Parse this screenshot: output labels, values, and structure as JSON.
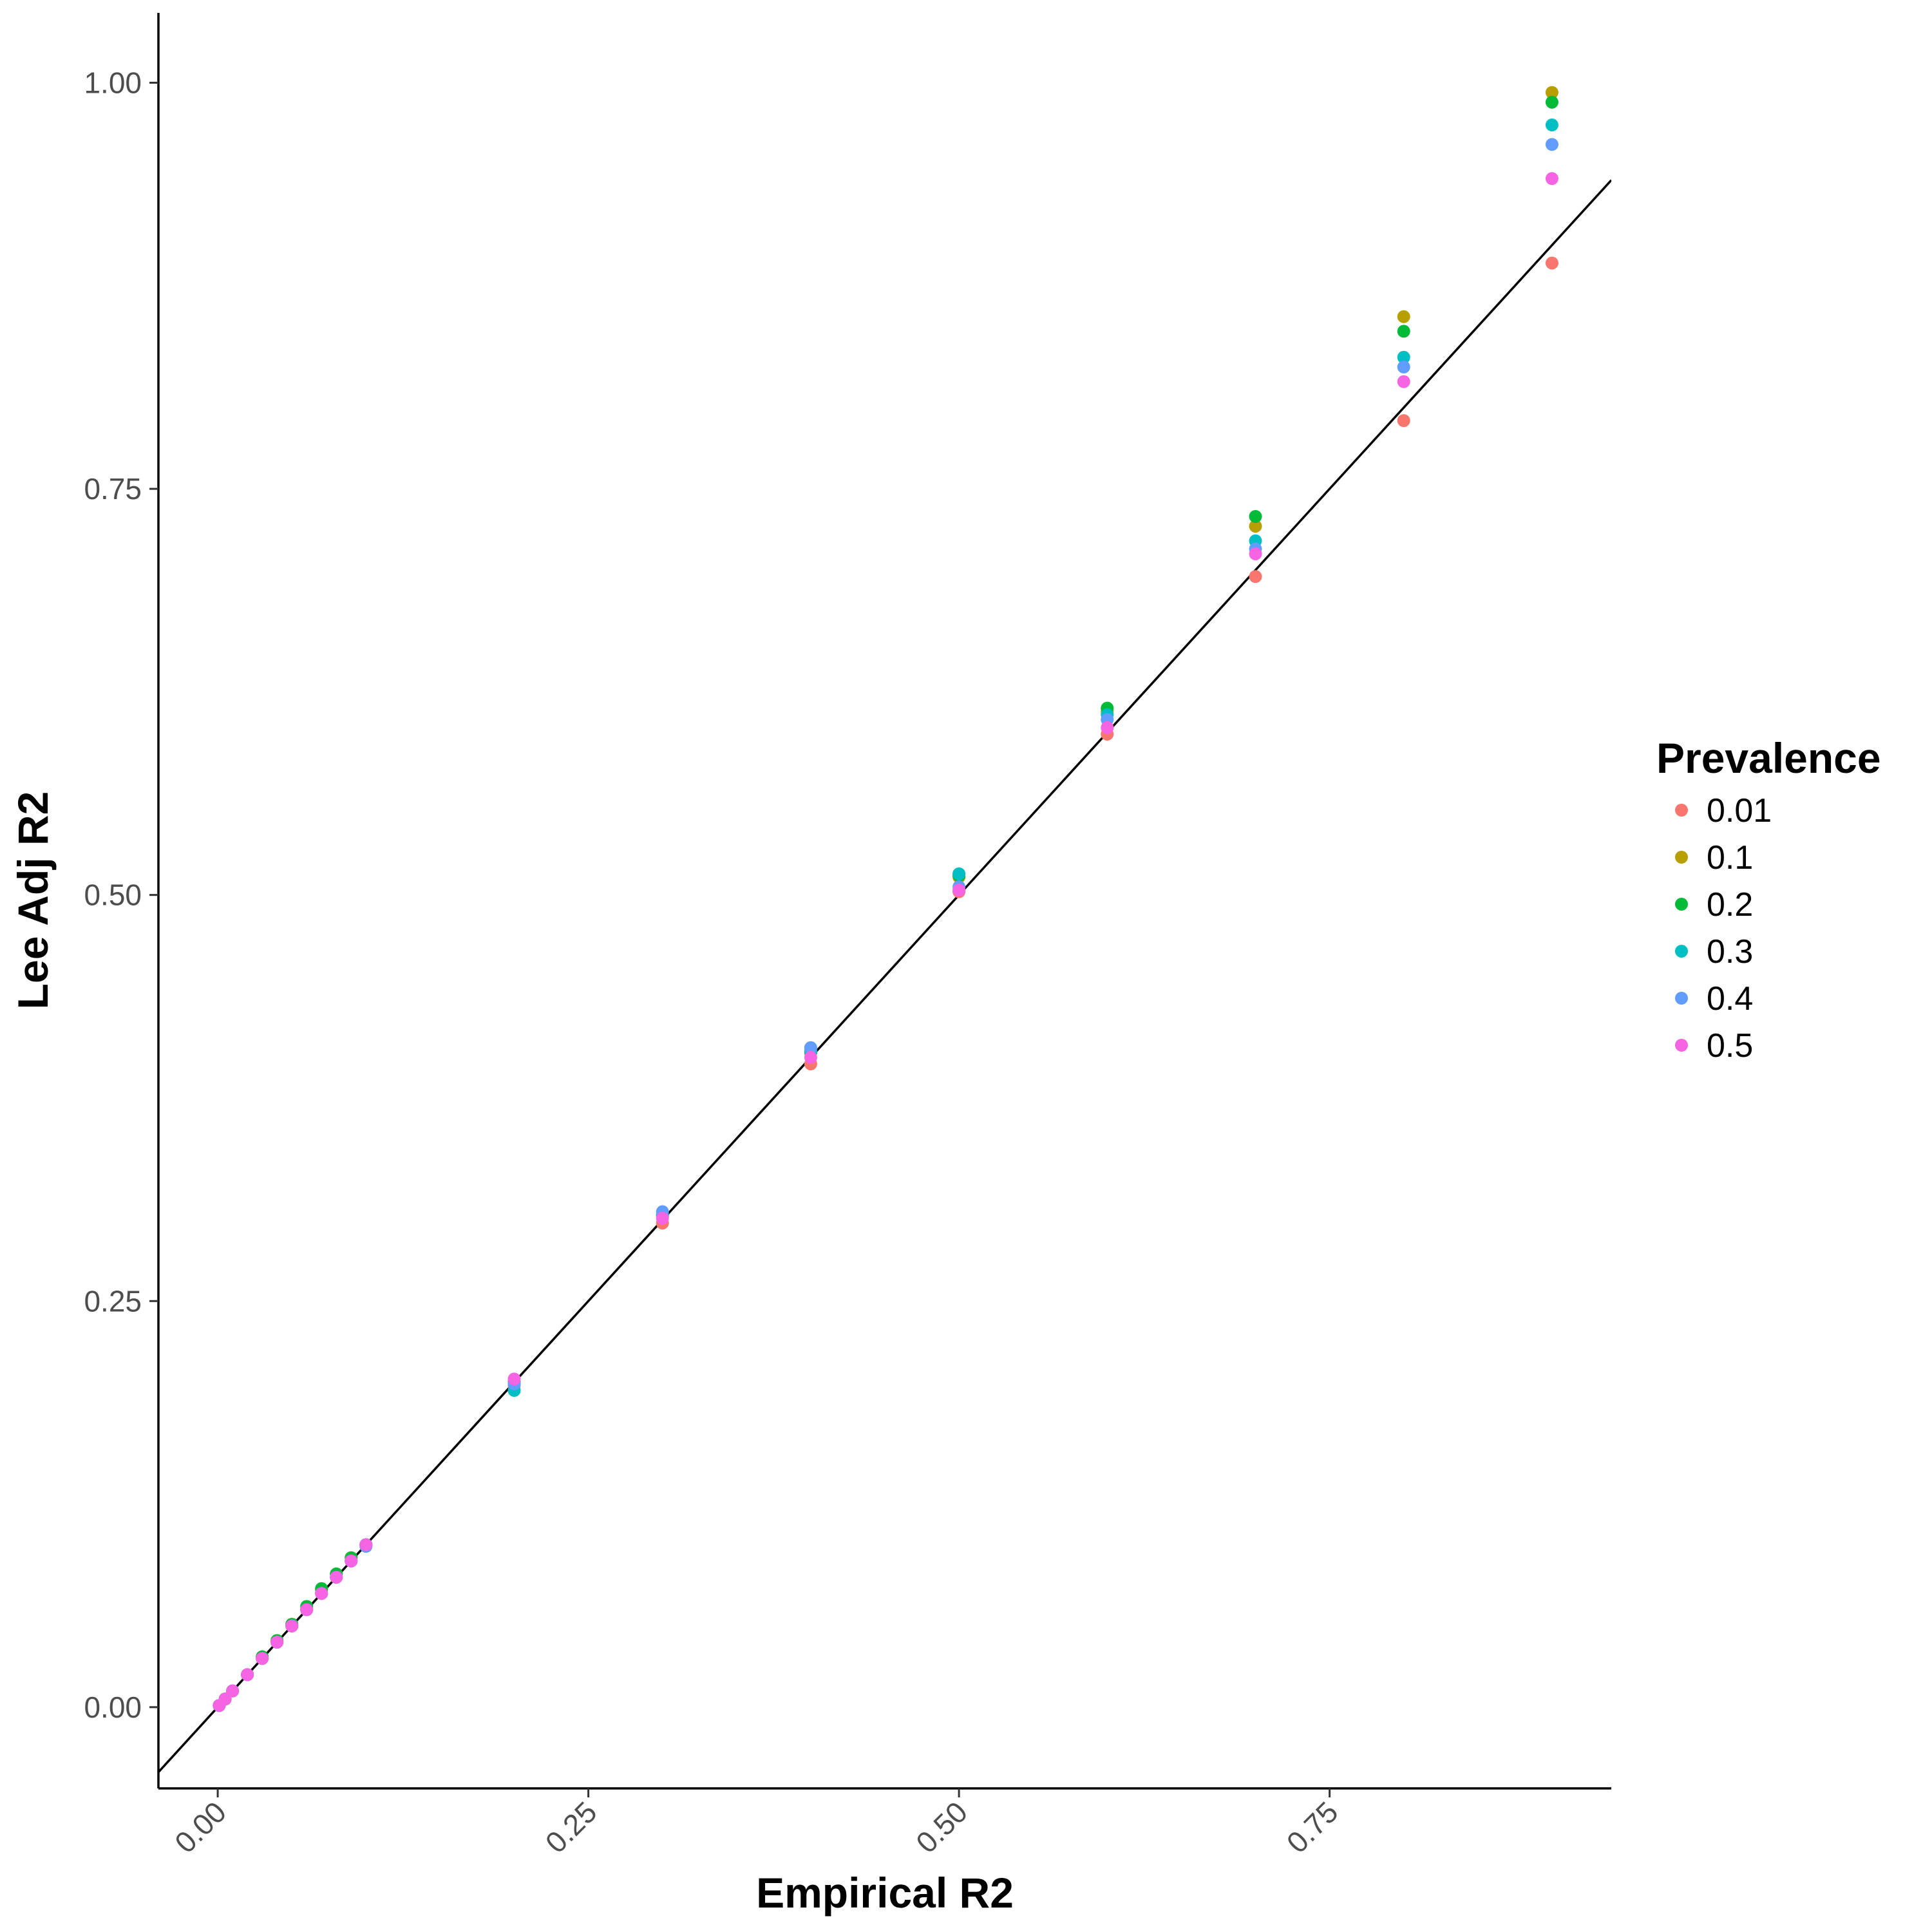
{
  "chart_data": {
    "type": "scatter",
    "xlabel": "Empirical R2",
    "ylabel": "Lee Adj R2",
    "xlim": [
      -0.04,
      0.94
    ],
    "ylim": [
      -0.05,
      1.043
    ],
    "x_ticks": [
      0,
      0.25,
      0.5,
      0.75
    ],
    "x_tick_labels": [
      "0.00",
      "0.25",
      "0.50",
      "0.75"
    ],
    "y_ticks": [
      0,
      0.25,
      0.5,
      0.75,
      1.0
    ],
    "y_tick_labels": [
      "0.00",
      "0.25",
      "0.50",
      "0.75",
      "1.00"
    ],
    "grid": false,
    "reference_line": {
      "slope": 1,
      "intercept": 0
    },
    "legend": {
      "title": "Prevalence",
      "placement": "right",
      "entries": [
        {
          "label": "0.01",
          "color": "#F8766D"
        },
        {
          "label": "0.1",
          "color": "#B79F00"
        },
        {
          "label": "0.2",
          "color": "#00BA38"
        },
        {
          "label": "0.3",
          "color": "#00BFC4"
        },
        {
          "label": "0.4",
          "color": "#619CFF"
        },
        {
          "label": "0.5",
          "color": "#F564E3"
        }
      ]
    },
    "series": [
      {
        "name": "0.01",
        "color": "#F8766D",
        "x": [
          0.001,
          0.005,
          0.01,
          0.02,
          0.03,
          0.04,
          0.05,
          0.06,
          0.07,
          0.08,
          0.09,
          0.1,
          0.2,
          0.3,
          0.4,
          0.5,
          0.6,
          0.7,
          0.8,
          0.9
        ],
        "y": [
          0.001,
          0.005,
          0.01,
          0.02,
          0.03,
          0.04,
          0.05,
          0.06,
          0.07,
          0.08,
          0.09,
          0.1,
          0.198,
          0.298,
          0.396,
          0.502,
          0.599,
          0.696,
          0.792,
          0.889
        ]
      },
      {
        "name": "0.1",
        "color": "#B79F00",
        "x": [
          0.001,
          0.005,
          0.01,
          0.02,
          0.03,
          0.04,
          0.05,
          0.06,
          0.07,
          0.08,
          0.09,
          0.1,
          0.2,
          0.3,
          0.4,
          0.5,
          0.6,
          0.7,
          0.8,
          0.9
        ],
        "y": [
          0.001,
          0.005,
          0.01,
          0.02,
          0.031,
          0.041,
          0.051,
          0.061,
          0.072,
          0.082,
          0.092,
          0.1,
          0.2,
          0.302,
          0.403,
          0.511,
          0.613,
          0.727,
          0.856,
          0.994
        ]
      },
      {
        "name": "0.2",
        "color": "#00BA38",
        "x": [
          0.001,
          0.005,
          0.01,
          0.02,
          0.03,
          0.04,
          0.05,
          0.06,
          0.07,
          0.08,
          0.09,
          0.1,
          0.2,
          0.3,
          0.4,
          0.5,
          0.6,
          0.7,
          0.8,
          0.9
        ],
        "y": [
          0.001,
          0.005,
          0.01,
          0.02,
          0.031,
          0.041,
          0.051,
          0.062,
          0.073,
          0.082,
          0.092,
          0.1,
          0.2,
          0.303,
          0.403,
          0.512,
          0.615,
          0.733,
          0.847,
          0.988
        ]
      },
      {
        "name": "0.3",
        "color": "#00BFC4",
        "x": [
          0.001,
          0.005,
          0.01,
          0.02,
          0.03,
          0.04,
          0.05,
          0.06,
          0.07,
          0.08,
          0.09,
          0.1,
          0.2,
          0.3,
          0.4,
          0.5,
          0.6,
          0.7,
          0.8,
          0.9
        ],
        "y": [
          0.001,
          0.005,
          0.01,
          0.02,
          0.03,
          0.04,
          0.05,
          0.06,
          0.07,
          0.08,
          0.09,
          0.1,
          0.195,
          0.303,
          0.404,
          0.513,
          0.611,
          0.718,
          0.831,
          0.974
        ]
      },
      {
        "name": "0.4",
        "color": "#619CFF",
        "x": [
          0.001,
          0.005,
          0.01,
          0.02,
          0.03,
          0.04,
          0.05,
          0.06,
          0.07,
          0.08,
          0.09,
          0.1,
          0.2,
          0.3,
          0.4,
          0.5,
          0.6,
          0.7,
          0.8,
          0.9
        ],
        "y": [
          0.001,
          0.005,
          0.01,
          0.02,
          0.03,
          0.04,
          0.05,
          0.06,
          0.07,
          0.08,
          0.09,
          0.099,
          0.199,
          0.305,
          0.406,
          0.505,
          0.608,
          0.713,
          0.825,
          0.962
        ]
      },
      {
        "name": "0.5",
        "color": "#F564E3",
        "x": [
          0.001,
          0.005,
          0.01,
          0.02,
          0.03,
          0.04,
          0.05,
          0.06,
          0.07,
          0.08,
          0.09,
          0.1,
          0.2,
          0.3,
          0.4,
          0.5,
          0.6,
          0.7,
          0.8,
          0.9
        ],
        "y": [
          0.001,
          0.005,
          0.01,
          0.02,
          0.03,
          0.04,
          0.05,
          0.06,
          0.07,
          0.08,
          0.09,
          0.1,
          0.202,
          0.301,
          0.4,
          0.503,
          0.603,
          0.71,
          0.816,
          0.941
        ]
      }
    ]
  }
}
